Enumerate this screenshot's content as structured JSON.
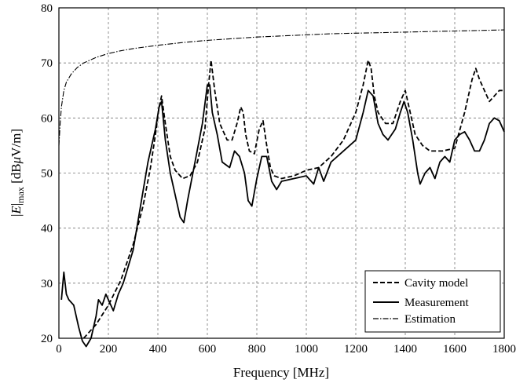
{
  "chart_data": {
    "type": "line",
    "xlabel": "Frequency [MHz]",
    "ylabel_parts": {
      "bar1": "|",
      "E": "E",
      "bar2": "|",
      "sub": "max",
      "unit_pre": " [dB",
      "mu": "μ",
      "unit_post": "V/m]"
    },
    "xlim": [
      0,
      1800
    ],
    "ylim": [
      20,
      80
    ],
    "xticks": [
      "0",
      "200",
      "400",
      "600",
      "800",
      "1000",
      "1200",
      "1400",
      "1600",
      "1800"
    ],
    "yticks": [
      "20",
      "30",
      "40",
      "50",
      "60",
      "70",
      "80"
    ],
    "grid": true,
    "legend_position": "bottom-right",
    "series": [
      {
        "name": "Cavity model",
        "style": "dashed",
        "x": [
          100,
          150,
          200,
          250,
          300,
          340,
          370,
          390,
          405,
          415,
          430,
          450,
          470,
          500,
          530,
          560,
          590,
          605,
          615,
          630,
          650,
          680,
          700,
          720,
          735,
          745,
          755,
          770,
          790,
          810,
          825,
          840,
          855,
          870,
          900,
          950,
          1000,
          1050,
          1100,
          1150,
          1200,
          1230,
          1250,
          1262,
          1275,
          1290,
          1320,
          1350,
          1380,
          1400,
          1420,
          1440,
          1470,
          1500,
          1550,
          1600,
          1640,
          1670,
          1685,
          1700,
          1720,
          1740,
          1760,
          1780,
          1800
        ],
        "y": [
          20,
          22.5,
          26,
          30.5,
          37,
          44,
          51,
          57,
          62,
          64,
          59,
          53,
          50.5,
          49,
          49.5,
          52,
          58,
          66,
          70.5,
          65,
          59,
          56,
          56,
          59,
          62,
          61,
          57,
          54,
          53.5,
          58,
          59.5,
          55,
          51,
          49.5,
          49,
          49.5,
          50.5,
          51,
          53,
          56,
          61,
          66,
          70.5,
          69,
          64,
          61,
          59,
          59,
          63,
          65,
          61,
          57,
          55,
          54,
          54,
          54.5,
          61,
          67,
          69,
          67,
          65,
          63,
          64,
          65,
          65
        ]
      },
      {
        "name": "Measurement",
        "style": "solid",
        "x": [
          10,
          20,
          25,
          30,
          40,
          60,
          80,
          95,
          110,
          130,
          150,
          160,
          175,
          190,
          200,
          220,
          240,
          260,
          280,
          300,
          330,
          360,
          390,
          405,
          415,
          430,
          450,
          470,
          490,
          505,
          520,
          550,
          580,
          600,
          610,
          620,
          640,
          660,
          690,
          710,
          730,
          750,
          765,
          780,
          800,
          820,
          840,
          860,
          880,
          900,
          950,
          1000,
          1030,
          1050,
          1070,
          1100,
          1150,
          1200,
          1230,
          1250,
          1270,
          1290,
          1310,
          1330,
          1360,
          1380,
          1395,
          1410,
          1430,
          1450,
          1460,
          1480,
          1500,
          1520,
          1540,
          1560,
          1580,
          1600,
          1620,
          1640,
          1660,
          1680,
          1700,
          1720,
          1740,
          1760,
          1780,
          1800
        ],
        "y": [
          27,
          32,
          30,
          28,
          27,
          26,
          22,
          19.5,
          18.5,
          20,
          24,
          27,
          26,
          28,
          27,
          25,
          28,
          30,
          33,
          36,
          44,
          52,
          58,
          62,
          63,
          56,
          50,
          46,
          42,
          41,
          45,
          52,
          59,
          66,
          66,
          61,
          57,
          52,
          51,
          54,
          53,
          50,
          45,
          44,
          49,
          53,
          53,
          48.5,
          47,
          48.5,
          49,
          49.5,
          48,
          51,
          48.5,
          52,
          54,
          56,
          61,
          65,
          64,
          59,
          57,
          56,
          58,
          61,
          63,
          61,
          56,
          50,
          48,
          50,
          51,
          49,
          52,
          53,
          52,
          56,
          57,
          57.5,
          56,
          54,
          54,
          56,
          59,
          60,
          59.5,
          57.5
        ]
      },
      {
        "name": "Estimation",
        "style": "dashdot",
        "x": [
          0,
          5,
          10,
          20,
          30,
          50,
          75,
          100,
          150,
          200,
          250,
          300,
          400,
          500,
          600,
          700,
          800,
          900,
          1000,
          1100,
          1200,
          1300,
          1400,
          1500,
          1600,
          1700,
          1800
        ],
        "y": [
          55,
          59,
          62,
          65,
          66.5,
          68,
          69.2,
          70,
          71,
          71.7,
          72.2,
          72.6,
          73.2,
          73.7,
          74.1,
          74.4,
          74.7,
          74.9,
          75.1,
          75.3,
          75.4,
          75.5,
          75.6,
          75.7,
          75.8,
          75.9,
          76
        ]
      }
    ]
  }
}
